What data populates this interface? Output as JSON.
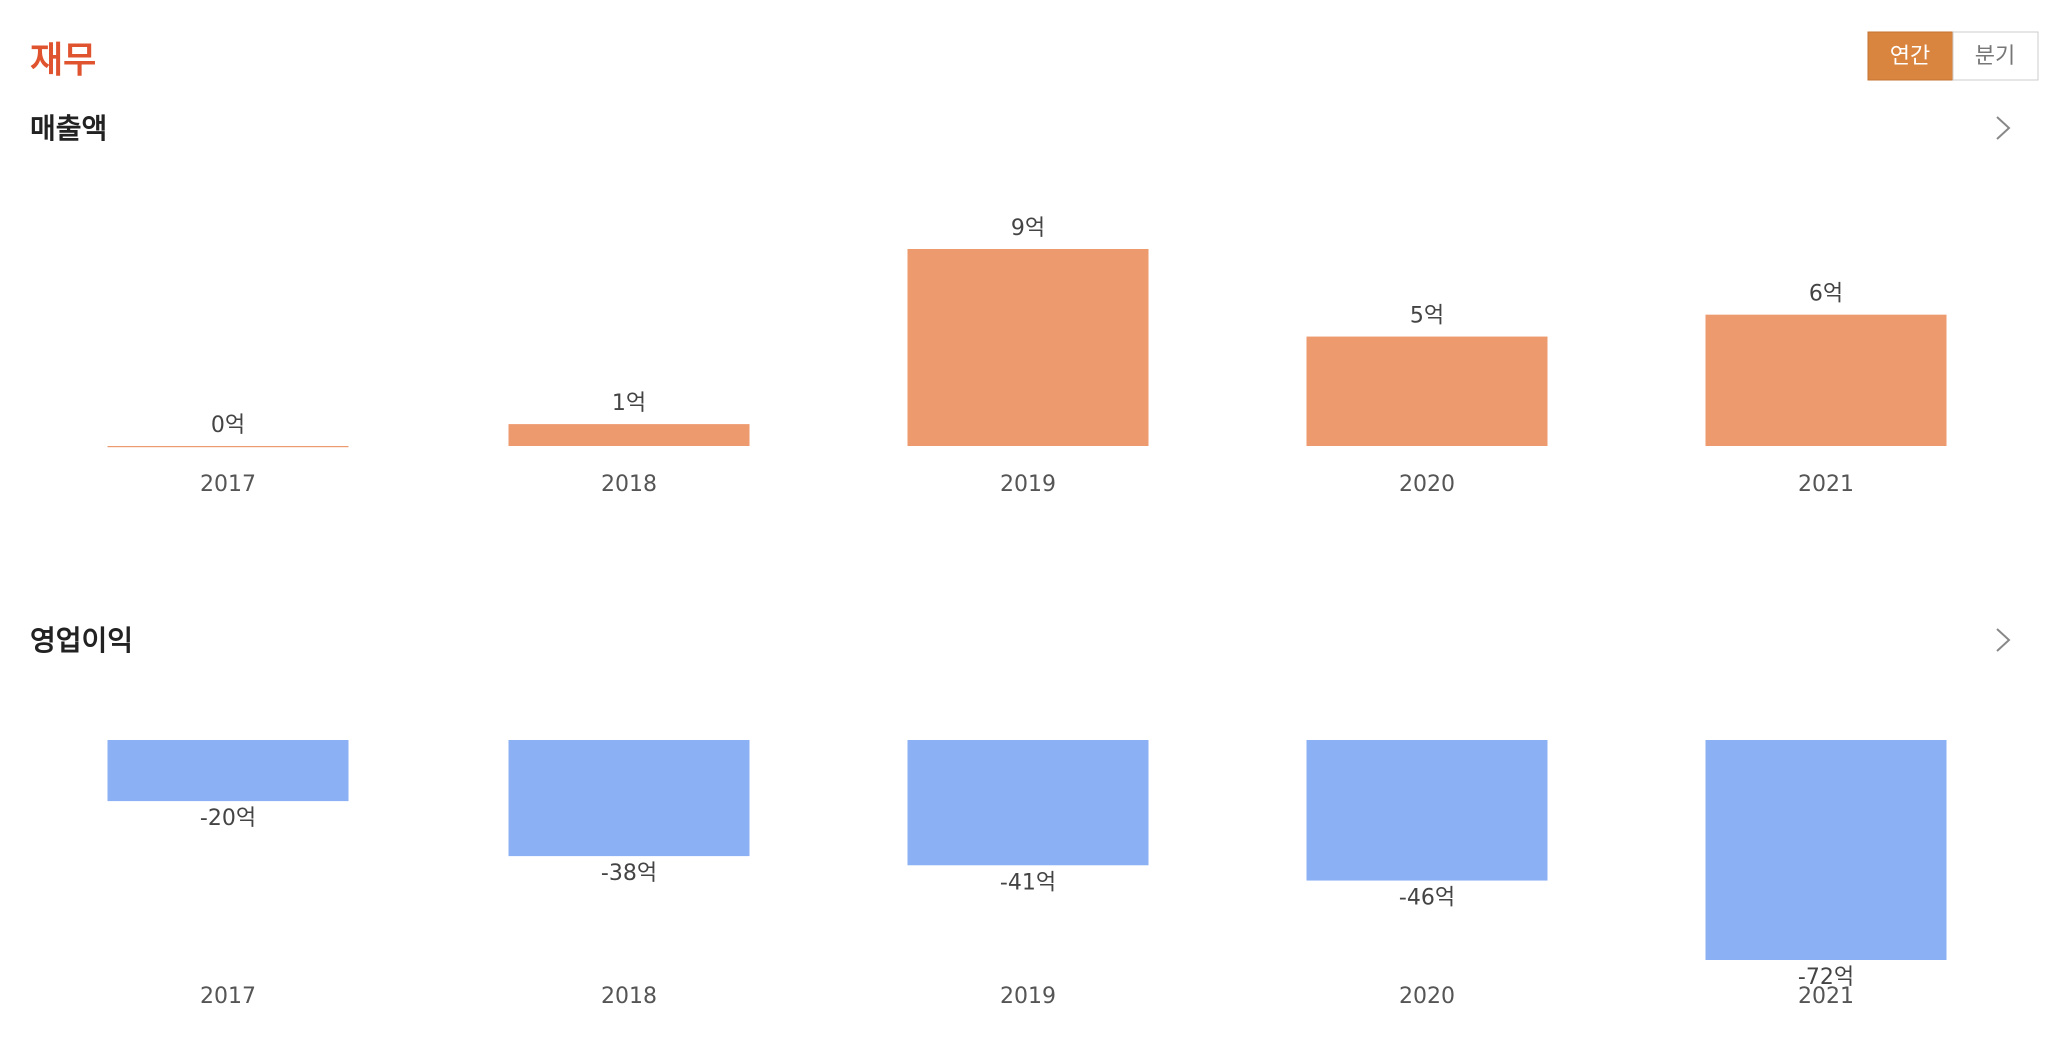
{
  "header": {
    "title": "재무",
    "tabs": [
      "연간",
      "분기"
    ],
    "active_tab": 0
  },
  "chart_data": [
    {
      "type": "bar",
      "title": "매출액",
      "categories": [
        "2017",
        "2018",
        "2019",
        "2020",
        "2021"
      ],
      "values": [
        0,
        1,
        9,
        5,
        6
      ],
      "value_labels": [
        "0억",
        "1억",
        "9억",
        "5억",
        "6억"
      ],
      "color": "#ee9a6f"
    },
    {
      "type": "bar",
      "title": "영업이익",
      "categories": [
        "2017",
        "2018",
        "2019",
        "2020",
        "2021"
      ],
      "values": [
        -20,
        -38,
        -41,
        -46,
        -72
      ],
      "value_labels": [
        "-20억",
        "-38억",
        "-41억",
        "-46억",
        "-72억"
      ],
      "color": "#8bb0f4"
    }
  ]
}
